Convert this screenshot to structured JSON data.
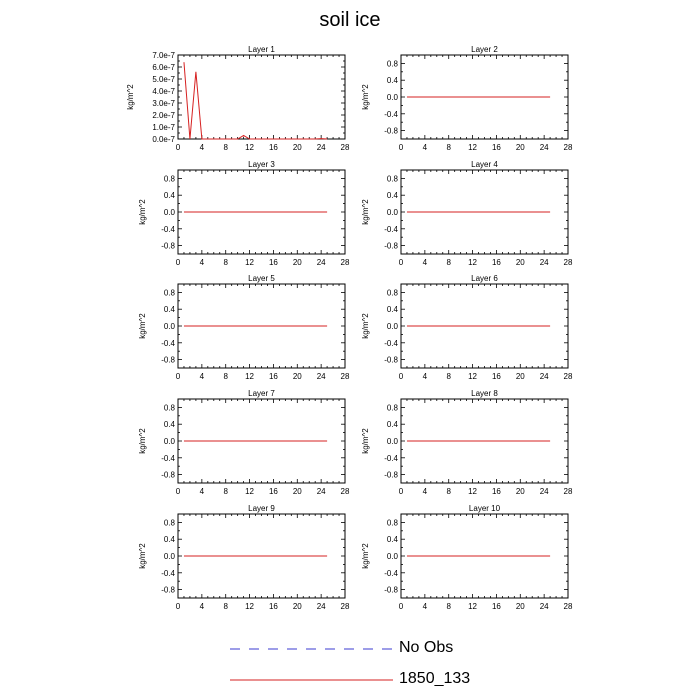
{
  "title": "soil ice",
  "colors": {
    "model_line": "#d62020",
    "obs_line": "#3b3bd0",
    "axis": "#000000"
  },
  "legend": {
    "entries": [
      {
        "label": "No Obs",
        "style": "dashed",
        "color": "#3b3bd0"
      },
      {
        "label": "1850_133",
        "style": "solid",
        "color": "#d62020"
      }
    ]
  },
  "chart_data": [
    {
      "type": "line",
      "title": "Layer 1",
      "ylabel": "kg/m^2",
      "xlim": [
        0,
        28
      ],
      "xticks": [
        0,
        4,
        8,
        12,
        16,
        20,
        24,
        28
      ],
      "ylim": [
        0,
        7e-07
      ],
      "yticks": [
        0,
        1e-07,
        2e-07,
        3e-07,
        4e-07,
        5e-07,
        6e-07,
        7e-07
      ],
      "ytick_labels": [
        "0.0e-7",
        "1.0e-7",
        "2.0e-7",
        "3.0e-7",
        "4.0e-7",
        "5.0e-7",
        "6.0e-7",
        "7.0e-7"
      ],
      "series": [
        {
          "name": "1850_133",
          "x": [
            1,
            2,
            3,
            4,
            5,
            6,
            7,
            8,
            9,
            10,
            11,
            12,
            13,
            14,
            15,
            16,
            17,
            18,
            19,
            20,
            21,
            22,
            23,
            24,
            25
          ],
          "values": [
            6.4e-07,
            0,
            5.6e-07,
            0,
            0,
            0,
            0,
            0,
            0,
            0,
            3e-08,
            0,
            0,
            0,
            0,
            0,
            0,
            0,
            0,
            0,
            0,
            0,
            0,
            3e-09,
            0
          ]
        }
      ]
    },
    {
      "type": "line",
      "title": "Layer 2",
      "ylabel": "kg/m^2",
      "xlim": [
        0,
        28
      ],
      "xticks": [
        0,
        4,
        8,
        12,
        16,
        20,
        24,
        28
      ],
      "ylim": [
        -1,
        1
      ],
      "yticks": [
        -0.8,
        -0.4,
        0.0,
        0.4,
        0.8
      ],
      "ytick_labels": [
        "-0.8",
        "-0.4",
        "0.0",
        "0.4",
        "0.8"
      ],
      "series": [
        {
          "name": "1850_133",
          "x": [
            1,
            25
          ],
          "values": [
            0,
            0
          ]
        }
      ]
    },
    {
      "type": "line",
      "title": "Layer 3",
      "ylabel": "kg/m^2",
      "xlim": [
        0,
        28
      ],
      "xticks": [
        0,
        4,
        8,
        12,
        16,
        20,
        24,
        28
      ],
      "ylim": [
        -1,
        1
      ],
      "yticks": [
        -0.8,
        -0.4,
        0.0,
        0.4,
        0.8
      ],
      "ytick_labels": [
        "-0.8",
        "-0.4",
        "0.0",
        "0.4",
        "0.8"
      ],
      "series": [
        {
          "name": "1850_133",
          "x": [
            1,
            25
          ],
          "values": [
            0,
            0
          ]
        }
      ]
    },
    {
      "type": "line",
      "title": "Layer 4",
      "ylabel": "kg/m^2",
      "xlim": [
        0,
        28
      ],
      "xticks": [
        0,
        4,
        8,
        12,
        16,
        20,
        24,
        28
      ],
      "ylim": [
        -1,
        1
      ],
      "yticks": [
        -0.8,
        -0.4,
        0.0,
        0.4,
        0.8
      ],
      "ytick_labels": [
        "-0.8",
        "-0.4",
        "0.0",
        "0.4",
        "0.8"
      ],
      "series": [
        {
          "name": "1850_133",
          "x": [
            1,
            25
          ],
          "values": [
            0,
            0
          ]
        }
      ]
    },
    {
      "type": "line",
      "title": "Layer 5",
      "ylabel": "kg/m^2",
      "xlim": [
        0,
        28
      ],
      "xticks": [
        0,
        4,
        8,
        12,
        16,
        20,
        24,
        28
      ],
      "ylim": [
        -1,
        1
      ],
      "yticks": [
        -0.8,
        -0.4,
        0.0,
        0.4,
        0.8
      ],
      "ytick_labels": [
        "-0.8",
        "-0.4",
        "0.0",
        "0.4",
        "0.8"
      ],
      "series": [
        {
          "name": "1850_133",
          "x": [
            1,
            25
          ],
          "values": [
            0,
            0
          ]
        }
      ]
    },
    {
      "type": "line",
      "title": "Layer 6",
      "ylabel": "kg/m^2",
      "xlim": [
        0,
        28
      ],
      "xticks": [
        0,
        4,
        8,
        12,
        16,
        20,
        24,
        28
      ],
      "ylim": [
        -1,
        1
      ],
      "yticks": [
        -0.8,
        -0.4,
        0.0,
        0.4,
        0.8
      ],
      "ytick_labels": [
        "-0.8",
        "-0.4",
        "0.0",
        "0.4",
        "0.8"
      ],
      "series": [
        {
          "name": "1850_133",
          "x": [
            1,
            25
          ],
          "values": [
            0,
            0
          ]
        }
      ]
    },
    {
      "type": "line",
      "title": "Layer 7",
      "ylabel": "kg/m^2",
      "xlim": [
        0,
        28
      ],
      "xticks": [
        0,
        4,
        8,
        12,
        16,
        20,
        24,
        28
      ],
      "ylim": [
        -1,
        1
      ],
      "yticks": [
        -0.8,
        -0.4,
        0.0,
        0.4,
        0.8
      ],
      "ytick_labels": [
        "-0.8",
        "-0.4",
        "0.0",
        "0.4",
        "0.8"
      ],
      "series": [
        {
          "name": "1850_133",
          "x": [
            1,
            25
          ],
          "values": [
            0,
            0
          ]
        }
      ]
    },
    {
      "type": "line",
      "title": "Layer 8",
      "ylabel": "kg/m^2",
      "xlim": [
        0,
        28
      ],
      "xticks": [
        0,
        4,
        8,
        12,
        16,
        20,
        24,
        28
      ],
      "ylim": [
        -1,
        1
      ],
      "yticks": [
        -0.8,
        -0.4,
        0.0,
        0.4,
        0.8
      ],
      "ytick_labels": [
        "-0.8",
        "-0.4",
        "0.0",
        "0.4",
        "0.8"
      ],
      "series": [
        {
          "name": "1850_133",
          "x": [
            1,
            25
          ],
          "values": [
            0,
            0
          ]
        }
      ]
    },
    {
      "type": "line",
      "title": "Layer 9",
      "ylabel": "kg/m^2",
      "xlim": [
        0,
        28
      ],
      "xticks": [
        0,
        4,
        8,
        12,
        16,
        20,
        24,
        28
      ],
      "ylim": [
        -1,
        1
      ],
      "yticks": [
        -0.8,
        -0.4,
        0.0,
        0.4,
        0.8
      ],
      "ytick_labels": [
        "-0.8",
        "-0.4",
        "0.0",
        "0.4",
        "0.8"
      ],
      "series": [
        {
          "name": "1850_133",
          "x": [
            1,
            25
          ],
          "values": [
            0,
            0
          ]
        }
      ]
    },
    {
      "type": "line",
      "title": "Layer 10",
      "ylabel": "kg/m^2",
      "xlim": [
        0,
        28
      ],
      "xticks": [
        0,
        4,
        8,
        12,
        16,
        20,
        24,
        28
      ],
      "ylim": [
        -1,
        1
      ],
      "yticks": [
        -0.8,
        -0.4,
        0.0,
        0.4,
        0.8
      ],
      "ytick_labels": [
        "-0.8",
        "-0.4",
        "0.0",
        "0.4",
        "0.8"
      ],
      "series": [
        {
          "name": "1850_133",
          "x": [
            1,
            25
          ],
          "values": [
            0,
            0
          ]
        }
      ]
    }
  ]
}
